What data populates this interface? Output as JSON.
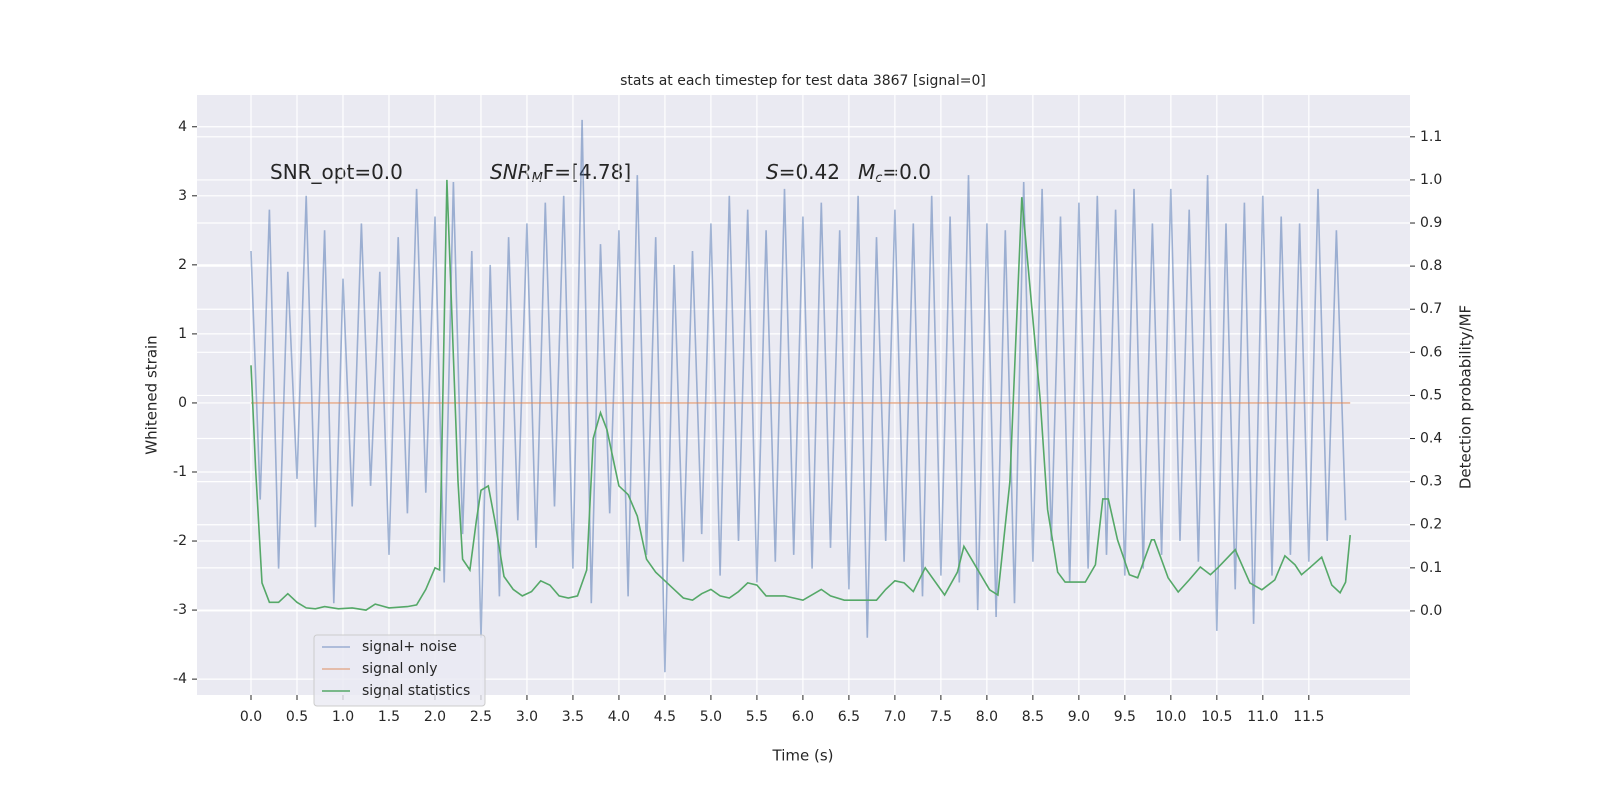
{
  "chart_data": {
    "type": "line",
    "title": "stats at each timestep for test data 3867 [signal=0]",
    "x_label": "Time (s)",
    "y_label": "Whitened strain",
    "y2_label": "Detection probability/MF",
    "annotations": [
      [
        "SNR_opt=0.0"
      ],
      [
        "SNR",
        "M",
        "F=[4.78]"
      ],
      [
        "S",
        "=0.42"
      ],
      [
        "M",
        "c",
        "=0.0"
      ]
    ],
    "xlim": [
      -0.587,
      12.6
    ],
    "ylim": [
      -4.23,
      4.46
    ],
    "y2lim": [
      -0.195,
      1.197
    ],
    "xticks": [
      {
        "value": 0,
        "label": "0.0"
      },
      {
        "value": 0.5,
        "label": "0.5"
      },
      {
        "value": 1,
        "label": "1.0"
      },
      {
        "value": 1.5,
        "label": "1.5"
      },
      {
        "value": 2,
        "label": "2.0"
      },
      {
        "value": 2.5,
        "label": "2.5"
      },
      {
        "value": 3,
        "label": "3.0"
      },
      {
        "value": 3.5,
        "label": "3.5"
      },
      {
        "value": 4,
        "label": "4.0"
      },
      {
        "value": 4.5,
        "label": "4.5"
      },
      {
        "value": 5,
        "label": "5.0"
      },
      {
        "value": 5.5,
        "label": "5.5"
      },
      {
        "value": 6,
        "label": "6.0"
      },
      {
        "value": 6.5,
        "label": "6.5"
      },
      {
        "value": 7,
        "label": "7.0"
      },
      {
        "value": 7.5,
        "label": "7.5"
      },
      {
        "value": 8,
        "label": "8.0"
      },
      {
        "value": 8.5,
        "label": "8.5"
      },
      {
        "value": 9,
        "label": "9.0"
      },
      {
        "value": 9.5,
        "label": "9.5"
      },
      {
        "value": 10,
        "label": "10.0"
      },
      {
        "value": 10.5,
        "label": "10.5"
      },
      {
        "value": 11,
        "label": "11.0"
      },
      {
        "value": 11.5,
        "label": "11.5"
      }
    ],
    "yticks": [
      -4,
      -3,
      -2,
      -1,
      0,
      1,
      2,
      3,
      4
    ],
    "y2ticks": [
      {
        "value": 0,
        "label": "0.0"
      },
      {
        "value": 0.1,
        "label": "0.1"
      },
      {
        "value": 0.2,
        "label": "0.2"
      },
      {
        "value": 0.3,
        "label": "0.3"
      },
      {
        "value": 0.4,
        "label": "0.4"
      },
      {
        "value": 0.5,
        "label": "0.5"
      },
      {
        "value": 0.6,
        "label": "0.6"
      },
      {
        "value": 0.7,
        "label": "0.7"
      },
      {
        "value": 0.8,
        "label": "0.8"
      },
      {
        "value": 0.9,
        "label": "0.9"
      },
      {
        "value": 1,
        "label": "1.0"
      },
      {
        "value": 1.1,
        "label": "1.1"
      }
    ],
    "grid": true,
    "legend": "lower left",
    "series": [
      {
        "name": "signal+ noise",
        "color": "#4c72b0",
        "x": [
          0,
          0.1,
          0.2,
          0.3,
          0.4,
          0.5,
          0.6,
          0.7,
          0.8,
          0.9,
          1,
          1.1,
          1.2,
          1.3,
          1.4,
          1.5,
          1.6,
          1.7,
          1.8,
          1.9,
          2,
          2.1,
          2.2,
          2.3,
          2.4,
          2.5,
          2.6,
          2.7,
          2.8,
          2.9,
          3,
          3.1,
          3.2,
          3.3,
          3.4,
          3.5,
          3.6,
          3.7,
          3.8,
          3.9,
          4,
          4.1,
          4.2,
          4.3,
          4.4,
          4.5,
          4.6,
          4.7,
          4.8,
          4.9,
          5,
          5.1,
          5.2,
          5.3,
          5.4,
          5.5,
          5.6,
          5.7,
          5.8,
          5.9,
          6,
          6.1,
          6.2,
          6.3,
          6.4,
          6.5,
          6.6,
          6.7,
          6.8,
          6.9,
          7,
          7.1,
          7.2,
          7.3,
          7.4,
          7.5,
          7.6,
          7.7,
          7.8,
          7.9,
          8,
          8.1,
          8.2,
          8.3,
          8.4,
          8.5,
          8.6,
          8.7,
          8.8,
          8.9,
          9,
          9.1,
          9.2,
          9.3,
          9.4,
          9.5,
          9.6,
          9.7,
          9.8,
          9.9,
          10,
          10.1,
          10.2,
          10.3,
          10.4,
          10.5,
          10.6,
          10.7,
          10.8,
          10.9,
          11,
          11.1,
          11.2,
          11.3,
          11.4,
          11.5,
          11.6,
          11.7,
          11.8,
          11.9
        ],
        "values": [
          2.2,
          -1.4,
          2.8,
          -2.4,
          1.9,
          -1.1,
          3.0,
          -1.8,
          2.5,
          -2.9,
          1.8,
          -1.5,
          2.6,
          -1.2,
          1.9,
          -2.2,
          2.4,
          -1.6,
          3.1,
          -1.3,
          2.7,
          -2.6,
          3.2,
          -1.9,
          2.2,
          -3.4,
          2.0,
          -2.8,
          2.4,
          -1.7,
          2.6,
          -2.1,
          2.9,
          -1.5,
          3.0,
          -2.4,
          4.1,
          -2.9,
          2.3,
          -1.6,
          2.5,
          -2.8,
          3.3,
          -2.2,
          2.4,
          -3.9,
          2.0,
          -2.3,
          2.2,
          -1.9,
          2.6,
          -2.5,
          3.0,
          -2.0,
          2.8,
          -2.6,
          2.5,
          -2.3,
          3.1,
          -2.2,
          2.7,
          -2.4,
          2.9,
          -2.1,
          2.5,
          -2.7,
          3.0,
          -3.4,
          2.4,
          -2.0,
          2.8,
          -2.3,
          2.6,
          -2.8,
          3.0,
          -2.5,
          2.7,
          -2.6,
          3.3,
          -3.0,
          2.6,
          -3.1,
          2.5,
          -2.9,
          3.2,
          -2.3,
          3.1,
          -2.0,
          2.7,
          -2.6,
          2.9,
          -2.4,
          3.0,
          -2.2,
          2.8,
          -2.5,
          3.1,
          -2.4,
          2.6,
          -2.2,
          3.1,
          -2.0,
          2.8,
          -2.3,
          3.3,
          -3.3,
          2.6,
          -2.7,
          2.9,
          -3.2,
          3.0,
          -2.5,
          2.7,
          -2.2,
          2.6,
          -2.3,
          3.1,
          -2.0,
          2.5,
          -1.7
        ]
      },
      {
        "name": "signal only",
        "color": "#dd8452",
        "x": [
          0,
          11.95
        ],
        "values": [
          0,
          0
        ]
      },
      {
        "name": "signal statistics",
        "color": "#55a868",
        "axis": "y2",
        "x": [
          0,
          0.05,
          0.12,
          0.2,
          0.3,
          0.4,
          0.5,
          0.6,
          0.7,
          0.8,
          0.95,
          1.1,
          1.25,
          1.35,
          1.5,
          1.7,
          1.8,
          1.9,
          2.0,
          2.05,
          2.13,
          2.25,
          2.3,
          2.38,
          2.45,
          2.5,
          2.58,
          2.65,
          2.75,
          2.85,
          2.95,
          3.05,
          3.15,
          3.25,
          3.35,
          3.45,
          3.55,
          3.65,
          3.72,
          3.8,
          3.87,
          3.95,
          4.0,
          4.1,
          4.2,
          4.3,
          4.4,
          4.5,
          4.6,
          4.7,
          4.8,
          4.9,
          5.0,
          5.1,
          5.2,
          5.3,
          5.4,
          5.5,
          5.6,
          5.8,
          6.0,
          6.2,
          6.3,
          6.45,
          6.6,
          6.8,
          6.9,
          7.0,
          7.1,
          7.2,
          7.33,
          7.54,
          7.68,
          7.75,
          8.03,
          8.12,
          8.25,
          8.38,
          8.58,
          8.66,
          8.77,
          8.85,
          9.07,
          9.18,
          9.26,
          9.32,
          9.42,
          9.55,
          9.64,
          9.79,
          9.82,
          9.97,
          10.08,
          10.2,
          10.32,
          10.43,
          10.51,
          10.7,
          10.86,
          10.99,
          11.13,
          11.24,
          11.35,
          11.42,
          11.51,
          11.64,
          11.75,
          11.84,
          11.9,
          11.95
        ],
        "values": [
          0.57,
          0.33,
          0.065,
          0.02,
          0.02,
          0.04,
          0.02,
          0.007,
          0.005,
          0.01,
          0.005,
          0.007,
          0.002,
          0.016,
          0.007,
          0.01,
          0.014,
          0.05,
          0.1,
          0.095,
          1.0,
          0.3,
          0.12,
          0.095,
          0.21,
          0.28,
          0.29,
          0.21,
          0.08,
          0.05,
          0.035,
          0.045,
          0.07,
          0.06,
          0.035,
          0.03,
          0.035,
          0.095,
          0.4,
          0.46,
          0.42,
          0.34,
          0.29,
          0.27,
          0.22,
          0.12,
          0.09,
          0.07,
          0.05,
          0.03,
          0.025,
          0.04,
          0.05,
          0.035,
          0.03,
          0.045,
          0.065,
          0.06,
          0.035,
          0.035,
          0.025,
          0.05,
          0.035,
          0.025,
          0.025,
          0.025,
          0.05,
          0.07,
          0.065,
          0.045,
          0.1,
          0.037,
          0.09,
          0.15,
          0.049,
          0.037,
          0.3,
          0.96,
          0.49,
          0.235,
          0.09,
          0.067,
          0.067,
          0.107,
          0.26,
          0.26,
          0.165,
          0.084,
          0.077,
          0.165,
          0.165,
          0.077,
          0.044,
          0.072,
          0.102,
          0.084,
          0.1,
          0.142,
          0.065,
          0.049,
          0.072,
          0.128,
          0.107,
          0.084,
          0.1,
          0.125,
          0.06,
          0.042,
          0.067,
          0.176
        ]
      }
    ]
  }
}
